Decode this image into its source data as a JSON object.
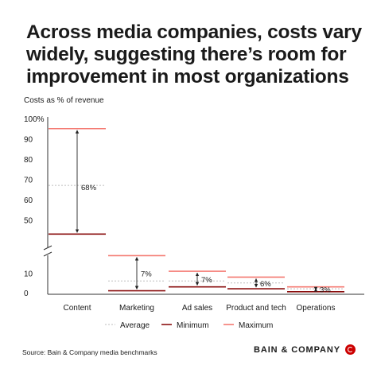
{
  "title_lines": [
    "Across media companies, costs vary",
    "widely, suggesting there’s room for",
    "improvement in most organizations"
  ],
  "source": "Source: Bain & Company media benchmarks",
  "brand": {
    "name": "BAIN & COMPANY",
    "logo_icon": "bain-circle-logo-icon"
  },
  "colors": {
    "minimum": "#8b1010",
    "maximum": "#f47a72",
    "average": "#bdbdbd",
    "axis": "#333333",
    "brand": "#cc0000"
  },
  "chart_data": {
    "type": "range",
    "ylabel": "Costs as % of revenue",
    "y_ticks": [
      "100%",
      "90",
      "80",
      "70",
      "60",
      "50",
      "10",
      "0"
    ],
    "axis_break": true,
    "categories": [
      "Content",
      "Marketing",
      "Ad sales",
      "Product and tech",
      "Operations"
    ],
    "series": [
      {
        "name": "Minimum",
        "values": [
          43,
          1,
          3,
          2,
          0.5
        ]
      },
      {
        "name": "Average",
        "values": [
          67,
          6,
          6,
          5,
          2
        ]
      },
      {
        "name": "Maximum",
        "values": [
          95,
          19,
          11,
          8,
          3
        ]
      }
    ],
    "range_labels": [
      "68%",
      "7%",
      "7%",
      "6%",
      "3%"
    ],
    "legend": [
      "Average",
      "Minimum",
      "Maximum"
    ],
    "legend_position": "bottom"
  }
}
